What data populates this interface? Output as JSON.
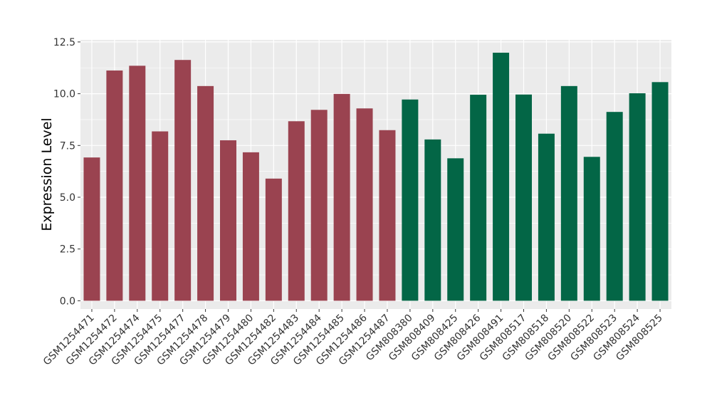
{
  "chart_data": {
    "type": "bar",
    "title": "",
    "xlabel": "",
    "ylabel": "Expression Level",
    "ylim": [
      -0.4,
      12.6
    ],
    "yticks": [
      0.0,
      2.5,
      5.0,
      7.5,
      10.0,
      12.5
    ],
    "ytick_labels": [
      "0.0",
      "2.5",
      "5.0",
      "7.5",
      "10.0",
      "12.5"
    ],
    "grid": true,
    "legend": "none",
    "panel_background": "#ebebeb",
    "grid_color": "#ffffff",
    "categories": [
      "GSM1254471",
      "GSM1254472",
      "GSM1254474",
      "GSM1254475",
      "GSM1254477",
      "GSM1254478",
      "GSM1254479",
      "GSM1254480",
      "GSM1254482",
      "GSM1254483",
      "GSM1254484",
      "GSM1254485",
      "GSM1254486",
      "GSM1254487",
      "GSM808380",
      "GSM808409",
      "GSM808425",
      "GSM808426",
      "GSM808491",
      "GSM808517",
      "GSM808518",
      "GSM808520",
      "GSM808522",
      "GSM808523",
      "GSM808524",
      "GSM808525"
    ],
    "values": [
      6.92,
      11.12,
      11.35,
      8.18,
      11.63,
      10.37,
      7.75,
      7.17,
      5.9,
      8.67,
      9.22,
      9.99,
      9.29,
      8.24,
      9.72,
      7.79,
      6.88,
      9.95,
      11.98,
      9.96,
      8.07,
      10.37,
      6.95,
      9.12,
      10.02,
      10.56
    ],
    "bar_colors": [
      "#9a4350",
      "#9a4350",
      "#9a4350",
      "#9a4350",
      "#9a4350",
      "#9a4350",
      "#9a4350",
      "#9a4350",
      "#9a4350",
      "#9a4350",
      "#9a4350",
      "#9a4350",
      "#9a4350",
      "#9a4350",
      "#036646",
      "#036646",
      "#036646",
      "#036646",
      "#036646",
      "#036646",
      "#036646",
      "#036646",
      "#036646",
      "#036646",
      "#036646",
      "#036646"
    ]
  }
}
